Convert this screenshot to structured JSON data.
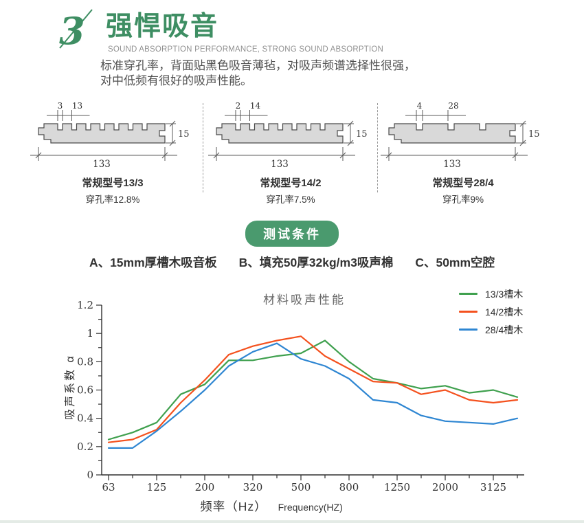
{
  "header": {
    "logo_numeral": "3",
    "title": "强悍吸音",
    "subtitle": "SOUND ABSORPTION PERFORMANCE, STRONG SOUND ABSORPTION",
    "description_line1": "标准穿孔率，背面贴黑色吸音薄毡，对吸声频谱选择性很强，",
    "description_line2": "对中低频有很好的吸声性能。",
    "accent_color": "#3e8e63"
  },
  "panels": [
    {
      "dim_slot": "3",
      "dim_pitch": "13",
      "thickness": "15",
      "width": "133",
      "slots": 7,
      "model": "常规型号13/3",
      "perforation": "穿孔率12.8%"
    },
    {
      "dim_slot": "2",
      "dim_pitch": "14",
      "thickness": "15",
      "width": "133",
      "slots": 7,
      "model": "常规型号14/2",
      "perforation": "穿孔率7.5%"
    },
    {
      "dim_slot": "4",
      "dim_pitch": "28",
      "thickness": "15",
      "width": "133",
      "slots": 3,
      "model": "常规型号28/4",
      "perforation": "穿孔率9%"
    }
  ],
  "test_conditions": {
    "badge": "测试条件",
    "badge_color": "#4a9a6e",
    "items": [
      {
        "label": "A、15mm厚槽木吸音板"
      },
      {
        "label": "B、填充50厚32kg/m3吸声棉"
      },
      {
        "label": "C、50mm空腔"
      }
    ]
  },
  "chart_data": {
    "type": "line",
    "title": "材料吸声性能",
    "xlabel_cn": "频率（Hz）",
    "xlabel_en": "Frequency(HZ)",
    "ylabel": "吸声系数 α",
    "x": [
      63,
      90,
      125,
      160,
      200,
      250,
      320,
      400,
      500,
      630,
      800,
      1000,
      1250,
      1600,
      2000,
      2500,
      3125,
      4000
    ],
    "x_tick_labels": [
      "63",
      "125",
      "200",
      "320",
      "500",
      "800",
      "1250",
      "2000",
      "3125"
    ],
    "ylim": [
      0,
      1.2
    ],
    "y_tick_labels": [
      "0",
      "0.2",
      "0.4",
      "0.6",
      "0.8",
      "1",
      "1.2"
    ],
    "grid": false,
    "legend_position": "top-right",
    "series": [
      {
        "name": "13/3槽木",
        "color": "#3fa04e",
        "values": [
          0.25,
          0.3,
          0.37,
          0.57,
          0.64,
          0.81,
          0.81,
          0.84,
          0.86,
          0.95,
          0.8,
          0.68,
          0.65,
          0.61,
          0.63,
          0.58,
          0.6,
          0.55
        ]
      },
      {
        "name": "14/2槽木",
        "color": "#f4511e",
        "values": [
          0.23,
          0.25,
          0.32,
          0.51,
          0.67,
          0.85,
          0.91,
          0.95,
          0.98,
          0.84,
          0.75,
          0.66,
          0.65,
          0.57,
          0.6,
          0.53,
          0.51,
          0.53
        ]
      },
      {
        "name": "28/4槽木",
        "color": "#2e86d2",
        "values": [
          0.19,
          0.19,
          0.31,
          0.45,
          0.6,
          0.77,
          0.87,
          0.93,
          0.82,
          0.77,
          0.68,
          0.53,
          0.51,
          0.42,
          0.38,
          0.37,
          0.36,
          0.4
        ]
      }
    ]
  }
}
